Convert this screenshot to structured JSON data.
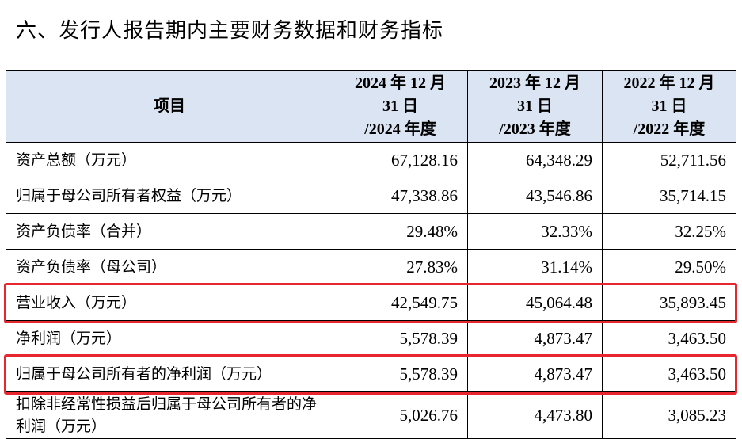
{
  "heading": "六、发行人报告期内主要财务数据和财务指标",
  "table": {
    "headers": [
      {
        "label": "项目"
      },
      {
        "line1": "2024 年 12 月",
        "line2": "31 日",
        "line3": "/2024 年度"
      },
      {
        "line1": "2023 年 12 月",
        "line2": "31 日",
        "line3": "/2023 年度"
      },
      {
        "line1": "2022 年 12 月",
        "line2": "31 日",
        "line3": "/2022 年度"
      }
    ],
    "rows": [
      {
        "label": "资产总额（万元）",
        "values": [
          "67,128.16",
          "64,348.29",
          "52,711.56"
        ]
      },
      {
        "label": "归属于母公司所有者权益（万元）",
        "values": [
          "47,338.86",
          "43,546.86",
          "35,714.15"
        ]
      },
      {
        "label": "资产负债率（合并）",
        "values": [
          "29.48%",
          "32.33%",
          "32.25%"
        ]
      },
      {
        "label": "资产负债率（母公司）",
        "values": [
          "27.83%",
          "31.14%",
          "29.50%"
        ]
      },
      {
        "label": "营业收入（万元）",
        "values": [
          "42,549.75",
          "45,064.48",
          "35,893.45"
        ],
        "highlighted": true
      },
      {
        "label": "净利润（万元）",
        "values": [
          "5,578.39",
          "4,873.47",
          "3,463.50"
        ]
      },
      {
        "label": "归属于母公司所有者的净利润（万元）",
        "values": [
          "5,578.39",
          "4,873.47",
          "3,463.50"
        ],
        "highlighted": true
      },
      {
        "label": "扣除非经常性损益后归属于母公司所有者的净利润（万元）",
        "values": [
          "5,026.76",
          "4,473.80",
          "3,085.23"
        ]
      }
    ]
  },
  "colors": {
    "header_bg": "#dbe4f3",
    "highlight": "#e8262d"
  }
}
